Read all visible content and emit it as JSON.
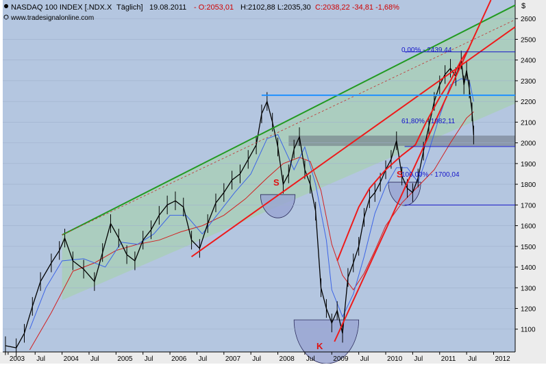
{
  "header": {
    "index_name": "NASDAQ 100 INDEX [.NDX.X",
    "frequency": "Täglich]",
    "date": "19.08.2011",
    "ohlc_open": "- O:2053,01",
    "ohlc_rest": "H:2102,88 L:2035,30",
    "ohlc_close": "C:2038,22 -34,81 -1,68%",
    "source": "www.tradesignalonline.com",
    "currency_symbol": "$"
  },
  "colors": {
    "plot_bg": "#b4c6e0",
    "right_axis_bg": "#ececec",
    "price": "#000000",
    "ma_fast": "#3c64e6",
    "ma_slow": "#d21e1e",
    "channel": "#229a22",
    "channel_fill": "#a8cfb4",
    "trend": "#ee1a1a",
    "support": "#1e90ff",
    "fib": "#1414c8",
    "pattern_fill": "#98a4d2"
  },
  "annotations": {
    "fib_top_label": "0,00% - 2439,44",
    "fib_mid_label": "61,80% - 1982,11",
    "fib_bottom_label": "100,00% - 1700,04",
    "pattern_left_shoulder": "S",
    "pattern_head": "K",
    "pattern_right_shoulder": "S"
  },
  "chart_data": {
    "type": "line",
    "title": "NASDAQ 100 INDEX [.NDX.X Täglich] 19.08.2011",
    "ylim": [
      990,
      2690
    ],
    "y_ticks": [
      1100,
      1200,
      1300,
      1400,
      1500,
      1600,
      1700,
      1800,
      1900,
      2000,
      2100,
      2200,
      2300,
      2400,
      2500,
      2600
    ],
    "x_labels": [
      {
        "label": "2003",
        "t": 2003.0
      },
      {
        "label": "Jul",
        "t": 2003.5
      },
      {
        "label": "2004",
        "t": 2004.0
      },
      {
        "label": "Jul",
        "t": 2004.5
      },
      {
        "label": "2005",
        "t": 2005.0
      },
      {
        "label": "Jul",
        "t": 2005.5
      },
      {
        "label": "2006",
        "t": 2006.0
      },
      {
        "label": "Jul",
        "t": 2006.5
      },
      {
        "label": "2007",
        "t": 2007.0
      },
      {
        "label": "Jul",
        "t": 2007.5
      },
      {
        "label": "2008",
        "t": 2008.0
      },
      {
        "label": "Jul",
        "t": 2008.5
      },
      {
        "label": "2009",
        "t": 2009.0
      },
      {
        "label": "Jul",
        "t": 2009.5
      },
      {
        "label": "2010",
        "t": 2010.0
      },
      {
        "label": "Jul",
        "t": 2010.5
      },
      {
        "label": "2011",
        "t": 2011.0
      },
      {
        "label": "Jul",
        "t": 2011.5
      },
      {
        "label": "2012",
        "t": 2012.0
      }
    ],
    "xlim": [
      2002.9,
      2012.4
    ],
    "series": [
      {
        "role": "price",
        "x": [
          2002.95,
          2003.15,
          2003.3,
          2003.45,
          2003.6,
          2003.8,
          2003.95,
          2004.05,
          2004.2,
          2004.4,
          2004.6,
          2004.75,
          2004.9,
          2005.05,
          2005.2,
          2005.35,
          2005.5,
          2005.65,
          2005.8,
          2005.95,
          2006.1,
          2006.25,
          2006.4,
          2006.55,
          2006.7,
          2006.85,
          2007.0,
          2007.15,
          2007.3,
          2007.45,
          2007.6,
          2007.7,
          2007.8,
          2007.9,
          2008.0,
          2008.1,
          2008.2,
          2008.3,
          2008.4,
          2008.5,
          2008.6,
          2008.7,
          2008.8,
          2008.9,
          2009.0,
          2009.1,
          2009.2,
          2009.3,
          2009.4,
          2009.5,
          2009.6,
          2009.7,
          2009.8,
          2009.9,
          2010.0,
          2010.1,
          2010.2,
          2010.3,
          2010.4,
          2010.5,
          2010.6,
          2010.7,
          2010.8,
          2010.9,
          2011.0,
          2011.1,
          2011.2,
          2011.3,
          2011.4,
          2011.45,
          2011.5,
          2011.55,
          2011.6,
          2011.63
        ],
        "y": [
          1020,
          1010,
          1080,
          1210,
          1330,
          1420,
          1480,
          1540,
          1430,
          1390,
          1330,
          1470,
          1610,
          1540,
          1460,
          1430,
          1530,
          1580,
          1650,
          1700,
          1720,
          1690,
          1530,
          1490,
          1610,
          1710,
          1760,
          1820,
          1850,
          1920,
          1990,
          2140,
          2200,
          2100,
          1980,
          1800,
          1850,
          1970,
          2030,
          1870,
          1800,
          1670,
          1300,
          1200,
          1130,
          1190,
          1080,
          1350,
          1420,
          1500,
          1640,
          1730,
          1760,
          1810,
          1870,
          1920,
          2010,
          1840,
          1780,
          1760,
          1830,
          1960,
          2080,
          2200,
          2280,
          2330,
          2360,
          2320,
          2400,
          2280,
          2350,
          2260,
          2150,
          2038
        ]
      },
      {
        "role": "moving_average_fast",
        "x": [
          2003.4,
          2003.7,
          2004.0,
          2004.4,
          2004.8,
          2005.1,
          2005.4,
          2005.7,
          2006.0,
          2006.3,
          2006.6,
          2006.9,
          2007.2,
          2007.5,
          2007.8,
          2008.0,
          2008.3,
          2008.5,
          2008.7,
          2008.9,
          2009.0,
          2009.2,
          2009.4,
          2009.6,
          2009.8,
          2010.0,
          2010.2,
          2010.4,
          2010.6,
          2010.8,
          2011.0,
          2011.2,
          2011.4,
          2011.55,
          2011.63
        ],
        "y": [
          1100,
          1300,
          1430,
          1440,
          1400,
          1520,
          1510,
          1560,
          1650,
          1650,
          1560,
          1660,
          1760,
          1850,
          2020,
          2040,
          1870,
          1980,
          1800,
          1530,
          1290,
          1160,
          1270,
          1450,
          1660,
          1790,
          1880,
          1880,
          1810,
          1960,
          2130,
          2280,
          2310,
          2300,
          2200
        ]
      },
      {
        "role": "moving_average_slow",
        "x": [
          2003.4,
          2003.8,
          2004.2,
          2004.6,
          2005.0,
          2005.4,
          2005.8,
          2006.2,
          2006.6,
          2007.0,
          2007.4,
          2007.8,
          2008.1,
          2008.4,
          2008.6,
          2008.8,
          2009.0,
          2009.2,
          2009.4,
          2009.6,
          2009.8,
          2010.0,
          2010.3,
          2010.6,
          2010.9,
          2011.2,
          2011.5,
          2011.63
        ],
        "y": [
          1000,
          1180,
          1380,
          1420,
          1480,
          1510,
          1530,
          1570,
          1600,
          1650,
          1730,
          1830,
          1900,
          1930,
          1910,
          1770,
          1510,
          1360,
          1290,
          1370,
          1480,
          1600,
          1710,
          1790,
          1870,
          2000,
          2120,
          2150
        ]
      },
      {
        "role": "channel_upper",
        "x": [
          2004.0,
          2012.4
        ],
        "y": [
          1555,
          2665
        ]
      },
      {
        "role": "channel_lower",
        "x": [
          2004.0,
          2012.4
        ],
        "y": [
          1240,
          2190
        ]
      },
      {
        "role": "channel_mid",
        "x": [
          2004.0,
          2012.4
        ],
        "y": [
          1555,
          2595
        ]
      },
      {
        "role": "trend_neckline",
        "x": [
          2006.4,
          2012.4
        ],
        "y": [
          1450,
          2560
        ]
      },
      {
        "role": "trend_steep",
        "x": [
          2009.05,
          2011.95
        ],
        "y": [
          1040,
          2690
        ]
      },
      {
        "role": "trend_arc",
        "x": [
          2009.1,
          2009.3,
          2009.5,
          2009.7,
          2010.0,
          2010.3,
          2010.55,
          2010.75,
          2011.0,
          2011.2,
          2011.4,
          2011.55
        ],
        "y": [
          1430,
          1560,
          1690,
          1780,
          1870,
          1940,
          1990,
          2100,
          2220,
          2300,
          2400,
          2460
        ]
      },
      {
        "role": "support_2230",
        "x": [
          2007.7,
          2012.4
        ],
        "y": [
          2230,
          2230
        ]
      },
      {
        "role": "fib_0",
        "x": [
          2010.35,
          2012.4
        ],
        "y": [
          2439.44,
          2439.44
        ]
      },
      {
        "role": "fib_61_8",
        "x": [
          2010.35,
          2012.4
        ],
        "y": [
          1982.11,
          1982.11
        ]
      },
      {
        "role": "fib_100",
        "x": [
          2010.35,
          2012.4
        ],
        "y": [
          1700.04,
          1700.04
        ]
      }
    ]
  }
}
